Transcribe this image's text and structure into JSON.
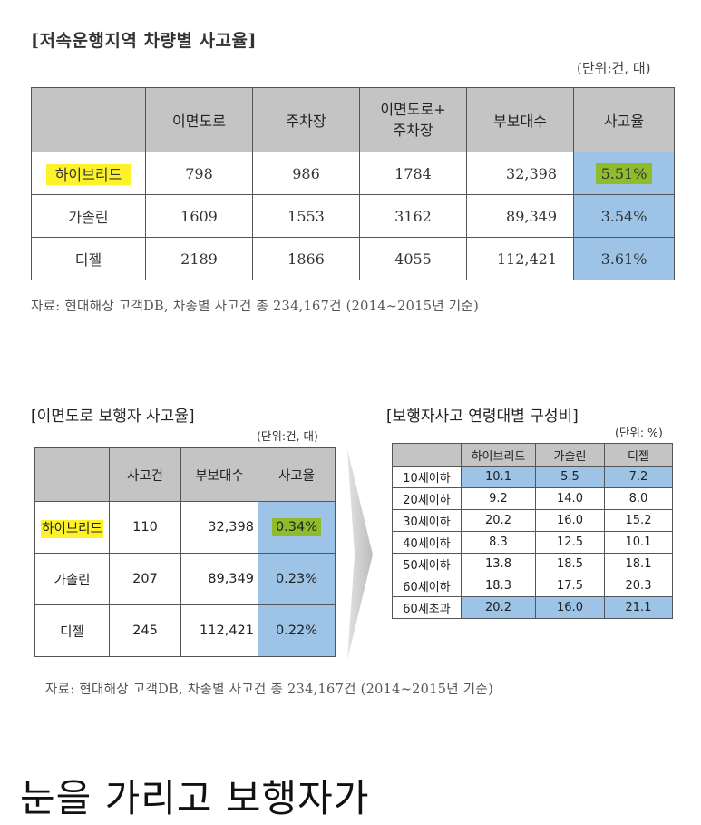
{
  "section1": {
    "title": "[저속운행지역 차량별 사고율]",
    "unit": "(단위:건, 대)",
    "headers": [
      "",
      "이면도로",
      "주차장",
      "이면도로+\n주차장",
      "부보대수",
      "사고율"
    ],
    "rows": [
      {
        "label": "하이브리드",
        "cells": [
          "798",
          "986",
          "1784",
          "32,398",
          "5.51%"
        ]
      },
      {
        "label": "가솔린",
        "cells": [
          "1609",
          "1553",
          "3162",
          "89,349",
          "3.54%"
        ]
      },
      {
        "label": "디젤",
        "cells": [
          "2189",
          "1866",
          "4055",
          "112,421",
          "3.61%"
        ]
      }
    ],
    "source": "자료: 현대해상 고객DB, 차종별 사고건 총 234,167건 (2014~2015년 기준)"
  },
  "section2": {
    "title": "[이면도로 보행자 사고율]",
    "unit": "(단위:건, 대)",
    "headers": [
      "",
      "사고건",
      "부보대수",
      "사고율"
    ],
    "rows": [
      {
        "label": "하이브리드",
        "cells": [
          "110",
          "32,398",
          "0.34%"
        ]
      },
      {
        "label": "가솔린",
        "cells": [
          "207",
          "89,349",
          "0.23%"
        ]
      },
      {
        "label": "디젤",
        "cells": [
          "245",
          "112,421",
          "0.22%"
        ]
      }
    ]
  },
  "section3": {
    "title": "[보행자사고 연령대별 구성비]",
    "unit": "(단위: %)",
    "headers": [
      "",
      "하이브리드",
      "가솔린",
      "디젤"
    ],
    "rows": [
      {
        "label": "10세이하",
        "cells": [
          "10.1",
          "5.5",
          "7.2"
        ]
      },
      {
        "label": "20세이하",
        "cells": [
          "9.2",
          "14.0",
          "8.0"
        ]
      },
      {
        "label": "30세이하",
        "cells": [
          "20.2",
          "16.0",
          "15.2"
        ]
      },
      {
        "label": "40세이하",
        "cells": [
          "8.3",
          "12.5",
          "10.1"
        ]
      },
      {
        "label": "50세이하",
        "cells": [
          "13.8",
          "18.5",
          "18.1"
        ]
      },
      {
        "label": "60세이하",
        "cells": [
          "18.3",
          "17.5",
          "20.3"
        ]
      },
      {
        "label": "60세초과",
        "cells": [
          "20.2",
          "16.0",
          "21.1"
        ]
      }
    ]
  },
  "source2": "자료: 현대해상 고객DB, 차종별 사고건 총 234,167건 (2014~2015년 기준)",
  "caption": "눈을 가리고 보행자가",
  "colors": {
    "header_gray": "#c4c4c4",
    "highlight_blue": "#9dc3e6",
    "marker_yellow": "#fdf22a",
    "marker_green": "#8fbc2b"
  }
}
